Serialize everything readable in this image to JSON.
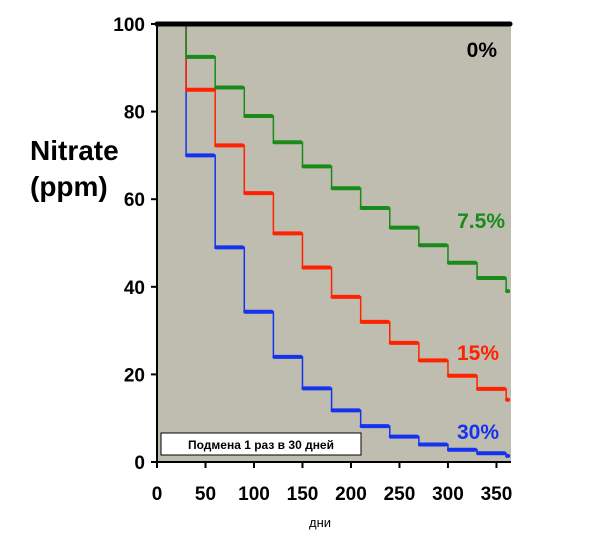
{
  "chart_data": {
    "type": "line",
    "title": "",
    "ylabel_line1": "Nitrate",
    "ylabel_line2": "(ppm)",
    "xlabel": "дни",
    "xlim": [
      0,
      365
    ],
    "ylim": [
      0,
      100
    ],
    "xticks": [
      0,
      50,
      100,
      150,
      200,
      250,
      300,
      350
    ],
    "yticks": [
      0,
      20,
      40,
      60,
      80,
      100
    ],
    "grid": false,
    "background": "#bfbdb0",
    "note": "Подмена 1 раз в 30 дней",
    "x": [
      0,
      30,
      60,
      90,
      120,
      150,
      180,
      210,
      240,
      270,
      300,
      330,
      360
    ],
    "series": [
      {
        "name": "0%",
        "label": "0%",
        "color": "#000000",
        "label_color": "#000000",
        "values": [
          100,
          100,
          100,
          100,
          100,
          100,
          100,
          100,
          100,
          100,
          100,
          100,
          100
        ]
      },
      {
        "name": "7.5%",
        "label": "7.5%",
        "color": "#1a8a1a",
        "label_color": "#1a8a1a",
        "values": [
          100,
          92.5,
          85.5,
          79,
          73,
          67.5,
          62.5,
          58,
          53.5,
          49.5,
          45.5,
          42,
          39
        ]
      },
      {
        "name": "15%",
        "label": "15%",
        "color": "#ff2200",
        "label_color": "#ff2200",
        "values": [
          100,
          85,
          72.3,
          61.4,
          52.2,
          44.4,
          37.7,
          32,
          27.2,
          23.2,
          19.7,
          16.7,
          14.2
        ]
      },
      {
        "name": "30%",
        "label": "30%",
        "color": "#1533ee",
        "label_color": "#1533ee",
        "values": [
          100,
          70,
          49,
          34.3,
          24,
          16.8,
          11.8,
          8.2,
          5.8,
          4,
          2.8,
          2,
          1.4
        ]
      }
    ]
  }
}
